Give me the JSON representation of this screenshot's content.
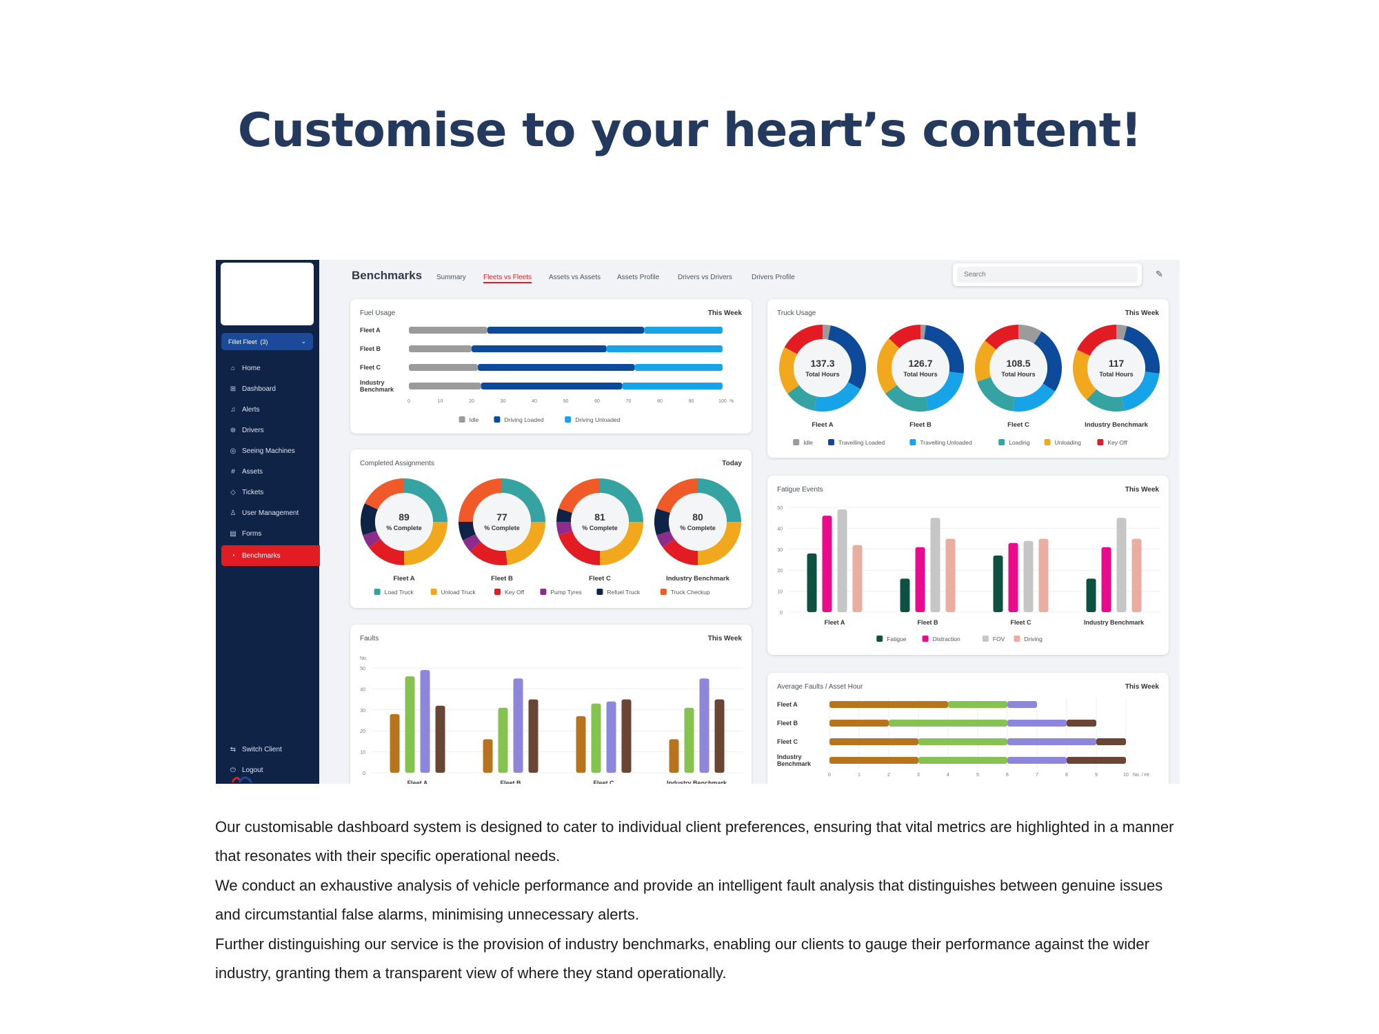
{
  "headline": "Customise to your heart’s content!",
  "paragraphs": [
    "Our customisable dashboard system is designed to cater to individual client preferences, ensuring that vital metrics are highlighted in a manner that resonates with their specific operational needs.",
    "We conduct an exhaustive analysis of vehicle performance and provide an intelligent fault analysis that distinguishes between genuine issues and circumstantial false alarms, minimising unnecessary alerts.",
    "Further distinguishing our service is the provision of industry benchmarks, enabling our clients to gauge their performance against the wider industry, granting them a transparent view of where they stand operationally."
  ],
  "app": {
    "fleet_select": "Fillet Fleet",
    "fleet_count": "(3)",
    "nav": [
      {
        "label": "Home",
        "icon": "home-icon"
      },
      {
        "label": "Dashboard",
        "icon": "dashboard-icon"
      },
      {
        "label": "Alerts",
        "icon": "bell-icon"
      },
      {
        "label": "Drivers",
        "icon": "steering-wheel-icon"
      },
      {
        "label": "Seeing Machines",
        "icon": "camera-icon"
      },
      {
        "label": "Assets",
        "icon": "hash-icon"
      },
      {
        "label": "Tickets",
        "icon": "ticket-icon"
      },
      {
        "label": "User Management",
        "icon": "user-icon"
      },
      {
        "label": "Forms",
        "icon": "document-icon"
      },
      {
        "label": "Benchmarks",
        "icon": "gauge-icon",
        "active": true
      }
    ],
    "bottom_nav": [
      {
        "label": "Switch Client",
        "icon": "switch-icon"
      },
      {
        "label": "Logout",
        "icon": "power-icon"
      }
    ],
    "page_title": "Benchmarks",
    "tabs": [
      "Summary",
      "Fleets vs Fleets",
      "Assets vs Assets",
      "Assets Profile",
      "Drivers vs Drivers",
      "Drivers Profile"
    ],
    "active_tab": "Fleets vs Fleets",
    "search_placeholder": "Search",
    "colors": {
      "sidebar": "#0f2346",
      "accent": "#e31b23",
      "brand_blue": "#1c4a9a"
    }
  },
  "chart_data": [
    {
      "id": "fuel_usage",
      "type": "bar",
      "orientation": "horizontal",
      "stacked": true,
      "title": "Fuel Usage",
      "period": "This Week",
      "categories": [
        "Fleet A",
        "Fleet B",
        "Fleet C",
        "Industry Benchmark"
      ],
      "xlim": [
        0,
        100
      ],
      "xticks": [
        0,
        10,
        20,
        30,
        40,
        50,
        60,
        70,
        80,
        90,
        100
      ],
      "xunit": "%",
      "series": [
        {
          "name": "Idle",
          "color": "#9b9b9b",
          "values": [
            25,
            20,
            22,
            23
          ]
        },
        {
          "name": "Driving Loaded",
          "color": "#0d4a9a",
          "values": [
            50,
            43,
            50,
            45
          ]
        },
        {
          "name": "Driving Unloaded",
          "color": "#16a3e8",
          "values": [
            25,
            37,
            28,
            32
          ]
        }
      ]
    },
    {
      "id": "truck_usage",
      "type": "pie",
      "donut": true,
      "title": "Truck Usage",
      "period": "This Week",
      "center_label": "Total Hours",
      "legend": [
        {
          "name": "Idle",
          "color": "#9b9b9b"
        },
        {
          "name": "Travelling Loaded",
          "color": "#0d4a9a"
        },
        {
          "name": "Travelling Unloaded",
          "color": "#16a3e8"
        },
        {
          "name": "Loading",
          "color": "#36a3a3"
        },
        {
          "name": "Unloading",
          "color": "#f2a81d"
        },
        {
          "name": "Key Off",
          "color": "#e31b23"
        }
      ],
      "groups": [
        {
          "name": "Fleet A",
          "total": "137.3",
          "values": [
            3,
            30,
            20,
            12,
            18,
            17
          ]
        },
        {
          "name": "Fleet B",
          "total": "126.7",
          "values": [
            2,
            25,
            20,
            18,
            22,
            13
          ]
        },
        {
          "name": "Fleet C",
          "total": "108.5",
          "values": [
            9,
            25,
            18,
            18,
            16,
            14
          ]
        },
        {
          "name": "Industry Benchmark",
          "total": "117",
          "values": [
            4,
            23,
            20,
            15,
            20,
            18
          ]
        }
      ]
    },
    {
      "id": "completed_assignments",
      "type": "pie",
      "donut": true,
      "title": "Completed Assignments",
      "period": "Today",
      "center_label": "% Complete",
      "legend": [
        {
          "name": "Load Truck",
          "color": "#36a3a3"
        },
        {
          "name": "Unload Truck",
          "color": "#f2a81d"
        },
        {
          "name": "Key Off",
          "color": "#e31b23"
        },
        {
          "name": "Pump Tyres",
          "color": "#8e2c8e"
        },
        {
          "name": "Refuel Truck",
          "color": "#0f2346"
        },
        {
          "name": "Truck Checkup",
          "color": "#ef5a28"
        }
      ],
      "groups": [
        {
          "name": "Fleet A",
          "total": "89",
          "values": [
            25,
            25,
            15,
            5,
            12,
            18
          ]
        },
        {
          "name": "Fleet B",
          "total": "77",
          "values": [
            25,
            23,
            15,
            5,
            7,
            25
          ]
        },
        {
          "name": "Fleet C",
          "total": "81",
          "values": [
            25,
            25,
            20,
            5,
            5,
            20
          ]
        },
        {
          "name": "Industry Benchmark",
          "total": "80",
          "values": [
            25,
            25,
            15,
            5,
            10,
            20
          ]
        }
      ]
    },
    {
      "id": "fatigue_events",
      "type": "bar",
      "title": "Fatigue Events",
      "period": "This Week",
      "categories": [
        "Fleet A",
        "Fleet B",
        "Fleet C",
        "Industry Benchmark"
      ],
      "ylim": [
        0,
        50
      ],
      "yticks": [
        0,
        10,
        20,
        30,
        40,
        50
      ],
      "series": [
        {
          "name": "Fatigue",
          "color": "#0d5240",
          "values": [
            28,
            16,
            27,
            16
          ]
        },
        {
          "name": "Distraction",
          "color": "#ea0b8c",
          "values": [
            46,
            31,
            33,
            31
          ]
        },
        {
          "name": "FOV",
          "color": "#c6c6c6",
          "values": [
            49,
            45,
            34,
            45
          ]
        },
        {
          "name": "Driving",
          "color": "#e9aea0",
          "values": [
            32,
            35,
            35,
            35
          ]
        }
      ]
    },
    {
      "id": "faults",
      "type": "bar",
      "title": "Faults",
      "period": "This Week",
      "ylabel": "No.",
      "categories": [
        "Fleet A",
        "Fleet B",
        "Fleet C",
        "Industry Benchmark"
      ],
      "ylim": [
        0,
        50
      ],
      "yticks": [
        0,
        10,
        20,
        30,
        40,
        50
      ],
      "series": [
        {
          "color": "#b8741c",
          "values": [
            28,
            16,
            27,
            16
          ]
        },
        {
          "color": "#86c24f",
          "values": [
            46,
            31,
            33,
            31
          ]
        },
        {
          "color": "#8e85dd",
          "values": [
            49,
            45,
            34,
            45
          ]
        },
        {
          "color": "#6b4534",
          "values": [
            32,
            35,
            35,
            35
          ]
        }
      ]
    },
    {
      "id": "avg_faults_asset_hour",
      "type": "bar",
      "orientation": "horizontal",
      "stacked": true,
      "title": "Average Faults / Asset Hour",
      "period": "This Week",
      "categories": [
        "Fleet A",
        "Fleet B",
        "Fleet C",
        "Industry Benchmark"
      ],
      "xlim": [
        0,
        10
      ],
      "xticks": [
        0,
        1,
        2,
        3,
        4,
        5,
        6,
        7,
        8,
        9,
        10
      ],
      "xunit": "No. / Hr",
      "series": [
        {
          "color": "#b8741c",
          "values": [
            4,
            2,
            3,
            3
          ]
        },
        {
          "color": "#86c24f",
          "values": [
            2,
            4,
            3,
            3
          ]
        },
        {
          "color": "#8e85dd",
          "values": [
            1,
            2,
            3,
            2
          ]
        },
        {
          "color": "#6b4534",
          "values": [
            0,
            1,
            1,
            2
          ]
        }
      ]
    }
  ]
}
